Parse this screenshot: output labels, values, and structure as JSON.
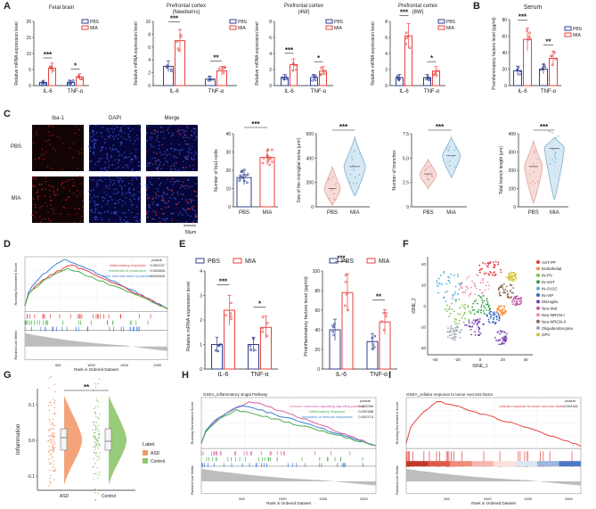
{
  "colors": {
    "pbs": "#2f3f8f",
    "mia": "#e8413e",
    "ctrl_fill": "#8dc76b",
    "asd_fill": "#f29a6b"
  },
  "panel_letters": [
    "A",
    "B",
    "C",
    "D",
    "E",
    "F",
    "G",
    "H",
    "I"
  ],
  "a": {
    "ylabel": "Relative mRNA expression level",
    "titles": [
      "Fetal brain",
      "Prefrontal cortex (Newborns)",
      "Prefrontal cortex (4W)",
      "Prefrontal cortex (8W)"
    ],
    "yticks": [
      [
        "0",
        "5",
        "10",
        "15",
        "20"
      ],
      [
        "0",
        "2",
        "4",
        "6",
        "8",
        "10"
      ],
      [
        "0",
        "2",
        "4",
        "6",
        "8"
      ],
      [
        "0",
        "2",
        "4",
        "6",
        "8"
      ]
    ]
  },
  "legend": {
    "pbs": "PBS",
    "mia": "MIA"
  },
  "b": {
    "title": "Serum",
    "ylabel": "Proinflammatory factors level (pg/ml)",
    "yticks": [
      "0",
      "20",
      "40",
      "60",
      "80"
    ]
  },
  "c": {
    "img_labels": [
      "Iba-1",
      "DAPI",
      "Merge"
    ],
    "row_labels": [
      "PBS",
      "MIA"
    ],
    "scale": "50μm",
    "y1": "Number of Iba1+cells",
    "y1ticks": [
      "0",
      "10",
      "20",
      "30",
      "40"
    ],
    "y2": "Size of the microglial soma (μm²)",
    "y2ticks": [
      "0",
      "200",
      "400",
      "600"
    ],
    "y3": "Number of branches",
    "y3ticks": [
      "0",
      "2.5",
      "5.0",
      "7.5"
    ],
    "y4": "Total branch length (μm)",
    "y4ticks": [
      "0",
      "100",
      "200",
      "300",
      "400"
    ]
  },
  "d": {
    "ylabel_top": "Running Enrichment Score",
    "ylabel_bot": "Ranked List Metric",
    "xlabel": "Rank in Ordered Dataset",
    "pvalue": "pvalue",
    "terms": [
      {
        "name": "inflammatory response",
        "p": "0.002137",
        "color": "#e8413e"
      },
      {
        "name": "interleukin-6 production",
        "p": "0.002833",
        "color": "#4caf50"
      },
      {
        "name": "tumor necrosis factor production",
        "p": "0.002849",
        "color": "#3f7fd8"
      }
    ],
    "xticks": [
      "500",
      "1000",
      "1500",
      "2000"
    ],
    "yticks_top": [
      "0.6",
      "0.4",
      "0.2",
      "0.0"
    ],
    "yticks_bot": [
      "1.5",
      "1",
      "0.5",
      "0"
    ]
  },
  "e": {
    "y1": "Relative mRNA expression level",
    "y1ticks": [
      "0",
      "1",
      "2",
      "3",
      "4"
    ],
    "y2": "Proinflammatory factors level (pg/ml)",
    "y2ticks": [
      "0",
      "20",
      "40",
      "60",
      "80",
      "100"
    ]
  },
  "f": {
    "xlabel": "tSNE_1",
    "ylabel": "tSNE_2",
    "xticks": [
      "-40",
      "-20",
      "0",
      "20",
      "40"
    ],
    "yticks": [
      "40",
      "20",
      "0",
      "-20",
      "-40"
    ],
    "legend": [
      "AST-PP",
      "Endothelial",
      "IN-PV",
      "IN-SST",
      "IN-SV2C",
      "IN-VIP",
      "Microglia",
      "Neu-Mat",
      "Neu-NRGN-I",
      "Neu-NRGN-II",
      "Oligodendrocytes",
      "OPC"
    ],
    "colors": [
      "#e23b3b",
      "#ff8c3a",
      "#7bc34f",
      "#2f9e44",
      "#4fb3d9",
      "#3266c4",
      "#7a3fb0",
      "#c158a8",
      "#ef8fb0",
      "#8b6a4f",
      "#9ca4b3",
      "#d6c13a"
    ]
  },
  "g": {
    "ylabel": "Inflammation",
    "legend_title": "Label",
    "legend": [
      "ASD",
      "Control"
    ],
    "xcats": [
      "ASD",
      "Control"
    ],
    "yticks": [
      "0.1",
      "0.0",
      "-0.1"
    ]
  },
  "h": {
    "title": "GSEA_inflammatory singal Pathway",
    "ylabel_top": "Running Enrichment Score",
    "ylabel_bot": "Ranked List Metric",
    "xlabel": "Rank in Ordered Dataset",
    "pvalue": "pvalue",
    "terms": [
      {
        "name": "immune response-regulating signaling pathway",
        "p": "0.002096",
        "color": "#d95fa8"
      },
      {
        "name": "inflammatory response",
        "p": "0.002188",
        "color": "#4caf50"
      },
      {
        "name": "regulation of immune responses",
        "p": "0.002174",
        "color": "#3f7fd8"
      }
    ],
    "xticks": [
      "500",
      "1000",
      "1500",
      "2000"
    ]
  },
  "i": {
    "title": "GSEA_cellular response to tumor necrosis factor",
    "ylabel_top": "Running Enrichment Score",
    "ylabel_bot": "Ranked List Metric",
    "xlabel": "Rank in Ordered Dataset",
    "pvalue": "pvalue",
    "terms": [
      {
        "name": "cellular response to tumor necrosis factor",
        "p": "0.002161",
        "color": "#e8413e"
      }
    ],
    "xticks": [
      "500",
      "1000",
      "1500",
      "2000"
    ]
  },
  "chart_data": [
    {
      "type": "bar",
      "panel": "A",
      "title": "Fetal brain",
      "ylabel": "Relative mRNA expression level",
      "categories": [
        "IL-6",
        "TNF-α"
      ],
      "series": [
        {
          "name": "PBS",
          "values": [
            1.0,
            1.0
          ]
        },
        {
          "name": "MIA",
          "values": [
            5.4,
            2.7
          ]
        }
      ],
      "ylim": [
        0,
        20
      ],
      "significance": [
        "***",
        "*"
      ]
    },
    {
      "type": "bar",
      "panel": "A",
      "title": "Prefrontal cortex (Newborns)",
      "ylabel": "Relative mRNA expression level",
      "categories": [
        "IL-6",
        "TNF-α"
      ],
      "series": [
        {
          "name": "PBS",
          "values": [
            3.0,
            1.0
          ]
        },
        {
          "name": "MIA",
          "values": [
            7.0,
            2.3
          ]
        }
      ],
      "ylim": [
        0,
        10
      ],
      "significance": [
        "***",
        "**"
      ]
    },
    {
      "type": "bar",
      "panel": "A",
      "title": "Prefrontal cortex (4W)",
      "ylabel": "Relative mRNA expression level",
      "categories": [
        "IL-6",
        "TNF-α"
      ],
      "series": [
        {
          "name": "PBS",
          "values": [
            1.0,
            1.0
          ]
        },
        {
          "name": "MIA",
          "values": [
            2.6,
            1.8
          ]
        }
      ],
      "ylim": [
        0,
        8
      ],
      "significance": [
        "***",
        "*"
      ]
    },
    {
      "type": "bar",
      "panel": "A",
      "title": "Prefrontal cortex (8W)",
      "ylabel": "Relative mRNA expression level",
      "categories": [
        "IL-6",
        "TNF-α"
      ],
      "series": [
        {
          "name": "PBS",
          "values": [
            1.0,
            1.0
          ]
        },
        {
          "name": "MIA",
          "values": [
            6.2,
            1.8
          ]
        }
      ],
      "ylim": [
        0,
        8
      ],
      "significance": [
        "***",
        "*"
      ]
    },
    {
      "type": "bar",
      "panel": "B",
      "title": "Serum",
      "ylabel": "Proinflammatory factors level (pg/ml)",
      "categories": [
        "IL-6",
        "TNF-α"
      ],
      "series": [
        {
          "name": "PBS",
          "values": [
            18,
            20
          ]
        },
        {
          "name": "MIA",
          "values": [
            56,
            33
          ]
        }
      ],
      "ylim": [
        0,
        80
      ],
      "significance": [
        "***",
        "**"
      ]
    },
    {
      "type": "bar",
      "panel": "C",
      "ylabel": "Number of Iba1+cells",
      "categories": [
        "PBS",
        "MIA"
      ],
      "values": [
        16,
        27
      ],
      "ylim": [
        0,
        40
      ],
      "significance": [
        "***"
      ]
    },
    {
      "type": "violin",
      "panel": "C",
      "ylabel": "Size of the microglial soma (μm²)",
      "categories": [
        "PBS",
        "MIA"
      ],
      "medians": [
        200,
        380
      ],
      "ylim": [
        0,
        600
      ],
      "significance": [
        "***"
      ]
    },
    {
      "type": "violin",
      "panel": "C",
      "ylabel": "Number of branches",
      "categories": [
        "PBS",
        "MIA"
      ],
      "medians": [
        4,
        6
      ],
      "ylim": [
        0,
        7.5
      ],
      "significance": [
        "***"
      ]
    },
    {
      "type": "violin",
      "panel": "C",
      "ylabel": "Total branch length (μm)",
      "categories": [
        "PBS",
        "MIA"
      ],
      "medians": [
        260,
        320
      ],
      "ylim": [
        0,
        400
      ],
      "significance": [
        "***"
      ]
    },
    {
      "type": "bar",
      "panel": "E",
      "ylabel": "Relative mRNA expression level",
      "categories": [
        "IL-6",
        "TNF-α"
      ],
      "series": [
        {
          "name": "PBS",
          "values": [
            1.0,
            1.0
          ]
        },
        {
          "name": "MIA",
          "values": [
            2.4,
            1.7
          ]
        }
      ],
      "ylim": [
        0,
        4
      ],
      "significance": [
        "***",
        "*"
      ]
    },
    {
      "type": "bar",
      "panel": "E",
      "ylabel": "Proinflammatory factors level (pg/ml)",
      "categories": [
        "IL-6",
        "TNF-α"
      ],
      "series": [
        {
          "name": "PBS",
          "values": [
            40,
            28
          ]
        },
        {
          "name": "MIA",
          "values": [
            78,
            48
          ]
        }
      ],
      "ylim": [
        0,
        100
      ],
      "significance": [
        "***",
        "**"
      ]
    },
    {
      "type": "violin",
      "panel": "G",
      "ylabel": "Inflammation",
      "categories": [
        "ASD",
        "Control"
      ],
      "medians": [
        0.02,
        -0.01
      ],
      "significance": [
        "**"
      ]
    }
  ]
}
